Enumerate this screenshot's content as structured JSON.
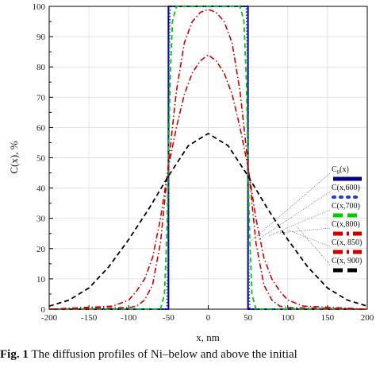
{
  "chart_data": {
    "type": "line",
    "xlabel": "x, nm",
    "ylabel": "C(x),  %",
    "xlim": [
      -200,
      200
    ],
    "ylim": [
      0,
      100
    ],
    "x_ticks": [
      -200,
      -150,
      -100,
      -50,
      0,
      50,
      100,
      150,
      200
    ],
    "y_ticks": [
      0,
      5,
      10,
      15,
      20,
      25,
      30,
      35,
      40,
      45,
      50,
      55,
      60,
      65,
      70,
      75,
      80,
      85,
      90,
      95,
      100
    ],
    "grid": true,
    "legend_position": "right",
    "series": [
      {
        "name": "C₀(x)",
        "label_main": "C",
        "label_sub": "0",
        "label_tail": "(x)",
        "color": "#000080",
        "style": "solid",
        "x": [
          -200,
          -50,
          -50,
          50,
          50,
          200
        ],
        "values": [
          0,
          0,
          100,
          100,
          0,
          0
        ]
      },
      {
        "name": "C(x,600)",
        "label_main": "C(x,600)",
        "color": "#1f3fd0",
        "style": "dotted",
        "x": [
          -200,
          -52,
          -50.5,
          -50,
          -49.5,
          -48,
          48,
          49.5,
          50,
          50.5,
          52,
          200
        ],
        "values": [
          0,
          0,
          20,
          50,
          80,
          100,
          100,
          80,
          50,
          20,
          0,
          0
        ]
      },
      {
        "name": "C(x,700)",
        "label_main": "C(x,700)",
        "color": "#00cc00",
        "style": "dashed",
        "x": [
          -200,
          -60,
          -55,
          -52,
          -50,
          -48,
          -45,
          -40,
          40,
          45,
          48,
          50,
          52,
          55,
          60,
          200
        ],
        "values": [
          0,
          0,
          5,
          25,
          50,
          75,
          95,
          100,
          100,
          95,
          75,
          50,
          25,
          5,
          0,
          0
        ]
      },
      {
        "name": "C(x,800)",
        "label_main": "C(x,800)",
        "color": "#cc0000",
        "style": "dashdot",
        "x": [
          -200,
          -100,
          -90,
          -80,
          -70,
          -60,
          -50,
          -40,
          -30,
          -20,
          -10,
          0,
          10,
          20,
          30,
          40,
          50,
          60,
          70,
          80,
          90,
          100,
          200
        ],
        "values": [
          0,
          0.5,
          1,
          3,
          8,
          22,
          48,
          72,
          88,
          95,
          98,
          99,
          98,
          95,
          88,
          72,
          48,
          22,
          8,
          3,
          1,
          0.5,
          0
        ]
      },
      {
        "name": "C(x, 850)",
        "label_main": "C(x, 850)",
        "color": "#cc0000",
        "style": "dashdot",
        "x": [
          -200,
          -120,
          -100,
          -90,
          -80,
          -70,
          -60,
          -50,
          -40,
          -30,
          -20,
          -10,
          0,
          10,
          20,
          30,
          40,
          50,
          60,
          70,
          80,
          90,
          100,
          120,
          200
        ],
        "values": [
          0,
          1,
          3,
          6,
          10,
          17,
          30,
          47,
          60,
          71,
          78,
          82,
          84,
          82,
          78,
          71,
          60,
          47,
          30,
          17,
          10,
          6,
          3,
          1,
          0
        ]
      },
      {
        "name": "C(x, 900)",
        "label_main": "C(x, 900)",
        "color": "#000000",
        "style": "dashed",
        "x": [
          -200,
          -175,
          -150,
          -125,
          -100,
          -75,
          -50,
          -25,
          0,
          25,
          50,
          75,
          100,
          125,
          150,
          175,
          200
        ],
        "values": [
          1,
          3,
          7,
          14,
          23,
          33,
          44,
          54,
          58,
          54,
          44,
          33,
          23,
          14,
          7,
          3,
          1
        ]
      }
    ],
    "caption": {
      "bold": "Fig. 1",
      "text": "The diffusion profiles of Ni–below and above the initial"
    }
  }
}
